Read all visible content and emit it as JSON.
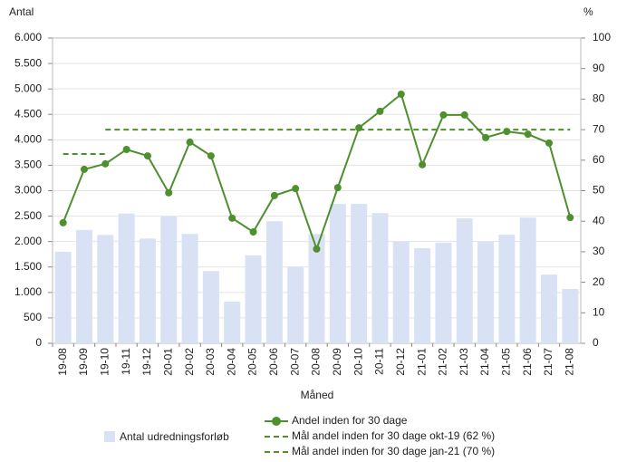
{
  "chart_data": {
    "type": "bar",
    "y_title": "Antal",
    "y2_title": "%",
    "x_title": "Måned",
    "categories": [
      "19-08",
      "19-09",
      "19-10",
      "19-11",
      "19-12",
      "20-01",
      "20-02",
      "20-03",
      "20-04",
      "20-05",
      "20-06",
      "20-07",
      "20-08",
      "20-09",
      "20-10",
      "20-11",
      "20-12",
      "21-01",
      "21-02",
      "21-03",
      "21-04",
      "21-05",
      "21-06",
      "21-07",
      "21-08"
    ],
    "series": [
      {
        "name": "Antal udredningsforløb",
        "type": "bar",
        "color": "#d9e2f5",
        "values": [
          1800,
          2230,
          2130,
          2550,
          2060,
          2500,
          2150,
          1420,
          820,
          1730,
          2400,
          1510,
          2150,
          2740,
          2740,
          2560,
          2010,
          1870,
          1975,
          2455,
          2010,
          2135,
          2473,
          1352,
          1068
        ]
      },
      {
        "name": "Andel inden for 30 dage",
        "type": "line",
        "axis": "y2",
        "color": "#4e8f2e",
        "style": "solid",
        "markers": true,
        "values": [
          39.5,
          57,
          58.8,
          63.5,
          61.4,
          49.3,
          65.9,
          61.4,
          41,
          36.5,
          48.4,
          50.7,
          30.9,
          51,
          70.6,
          76,
          81.6,
          58.5,
          74.8,
          74.8,
          67.4,
          69.4,
          68.5,
          65.6,
          41.2
        ]
      },
      {
        "name": "Mål andel inden for 30 dage okt-19 (62 %)",
        "type": "line",
        "axis": "y2",
        "color": "#4e8f2e",
        "style": "dashed",
        "markers": false,
        "values": [
          62,
          62,
          62,
          null,
          null,
          null,
          null,
          null,
          null,
          null,
          null,
          null,
          null,
          null,
          null,
          null,
          null,
          null,
          null,
          null,
          null,
          null,
          null,
          null,
          null
        ]
      },
      {
        "name": "Mål andel inden for 30 dage jan-21 (70 %)",
        "type": "line",
        "axis": "y2",
        "color": "#4e8f2e",
        "style": "dashed",
        "markers": false,
        "values": [
          null,
          null,
          70,
          70,
          70,
          70,
          70,
          70,
          70,
          70,
          70,
          70,
          70,
          70,
          70,
          70,
          70,
          70,
          70,
          70,
          70,
          70,
          70,
          70,
          70
        ]
      }
    ],
    "ylim": [
      0,
      6000
    ],
    "yticks": [
      0,
      500,
      {
        "value": 1000,
        "label": "1.000"
      },
      {
        "value": 1500,
        "label": "1.500"
      },
      {
        "value": 2000,
        "label": "2.000"
      },
      {
        "value": 2500,
        "label": "2.500"
      },
      {
        "value": 3000,
        "label": "3.000"
      },
      {
        "value": 3500,
        "label": "3.500"
      },
      {
        "value": 4000,
        "label": "4.000"
      },
      {
        "value": 4500,
        "label": "4.500"
      },
      {
        "value": 5000,
        "label": "5.000"
      },
      {
        "value": 5500,
        "label": "5.500"
      },
      {
        "value": 6000,
        "label": "6.000"
      }
    ],
    "y2lim": [
      0,
      100
    ],
    "y2ticks": [
      0,
      10,
      20,
      30,
      40,
      50,
      60,
      70,
      80,
      90,
      100
    ],
    "grid": true
  }
}
